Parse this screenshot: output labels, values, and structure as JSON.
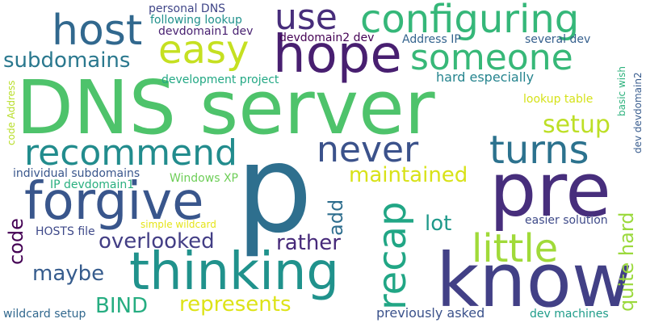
{
  "words": [
    {
      "text": "DNS server",
      "color": "#4ec36b"
    },
    {
      "text": "p",
      "color": "#2e6f8e"
    },
    {
      "text": "pre",
      "color": "#472e7c"
    },
    {
      "text": "know",
      "color": "#424086"
    },
    {
      "text": "thinking",
      "color": "#20928c"
    },
    {
      "text": "forgive",
      "color": "#39568c"
    },
    {
      "text": "hope",
      "color": "#481f70"
    },
    {
      "text": "configuring",
      "color": "#35b779"
    },
    {
      "text": "host",
      "color": "#31688e"
    },
    {
      "text": "use",
      "color": "#472d7b"
    },
    {
      "text": "easy",
      "color": "#c5e021"
    },
    {
      "text": "someone",
      "color": "#37b878"
    },
    {
      "text": "recommend",
      "color": "#228c8d"
    },
    {
      "text": "never",
      "color": "#3b528b"
    },
    {
      "text": "turns",
      "color": "#2c728e"
    },
    {
      "text": "little",
      "color": "#a0da39"
    },
    {
      "text": "recap",
      "color": "#21a685"
    },
    {
      "text": "subdomains",
      "color": "#2a788e"
    },
    {
      "text": "setup",
      "color": "#bddf26"
    },
    {
      "text": "maintained",
      "color": "#d8e219"
    },
    {
      "text": "overlooked",
      "color": "#433e85"
    },
    {
      "text": "rather",
      "color": "#472a7a"
    },
    {
      "text": "lot",
      "color": "#1f998a"
    },
    {
      "text": "maybe",
      "color": "#365c8d"
    },
    {
      "text": "quite hard",
      "color": "#9bd93c"
    },
    {
      "text": "represents",
      "color": "#dde318"
    },
    {
      "text": "BIND",
      "color": "#26ad81"
    },
    {
      "text": "add",
      "color": "#2e6e8e"
    },
    {
      "text": "code",
      "color": "#440154"
    },
    {
      "text": "personal DNS",
      "color": "#404688"
    },
    {
      "text": "following lookup",
      "color": "#21918c"
    },
    {
      "text": "devdomain1 dev",
      "color": "#482071"
    },
    {
      "text": "devdomain2 dev",
      "color": "#440154"
    },
    {
      "text": "Address IP",
      "color": "#33638d"
    },
    {
      "text": "several dev",
      "color": "#355f8d"
    },
    {
      "text": "hard especially",
      "color": "#25848e"
    },
    {
      "text": "development project",
      "color": "#22a884"
    },
    {
      "text": "lookup table",
      "color": "#d5e21a"
    },
    {
      "text": "basic wish",
      "color": "#2db27d"
    },
    {
      "text": "dev devdomain2",
      "color": "#375b8d"
    },
    {
      "text": "individual subdomains",
      "color": "#39568c"
    },
    {
      "text": "Windows XP",
      "color": "#6ece58"
    },
    {
      "text": "IP devdomain1",
      "color": "#29af7f"
    },
    {
      "text": "simple wildcard",
      "color": "#e5e419"
    },
    {
      "text": "HOSTS file",
      "color": "#3e4989"
    },
    {
      "text": "easier solution",
      "color": "#3e4a89"
    },
    {
      "text": "previously asked",
      "color": "#3b528b"
    },
    {
      "text": "dev machines",
      "color": "#1e9c89"
    },
    {
      "text": "wildcard setup",
      "color": "#31688e"
    },
    {
      "text": "code Address",
      "color": "#b8de29"
    }
  ]
}
